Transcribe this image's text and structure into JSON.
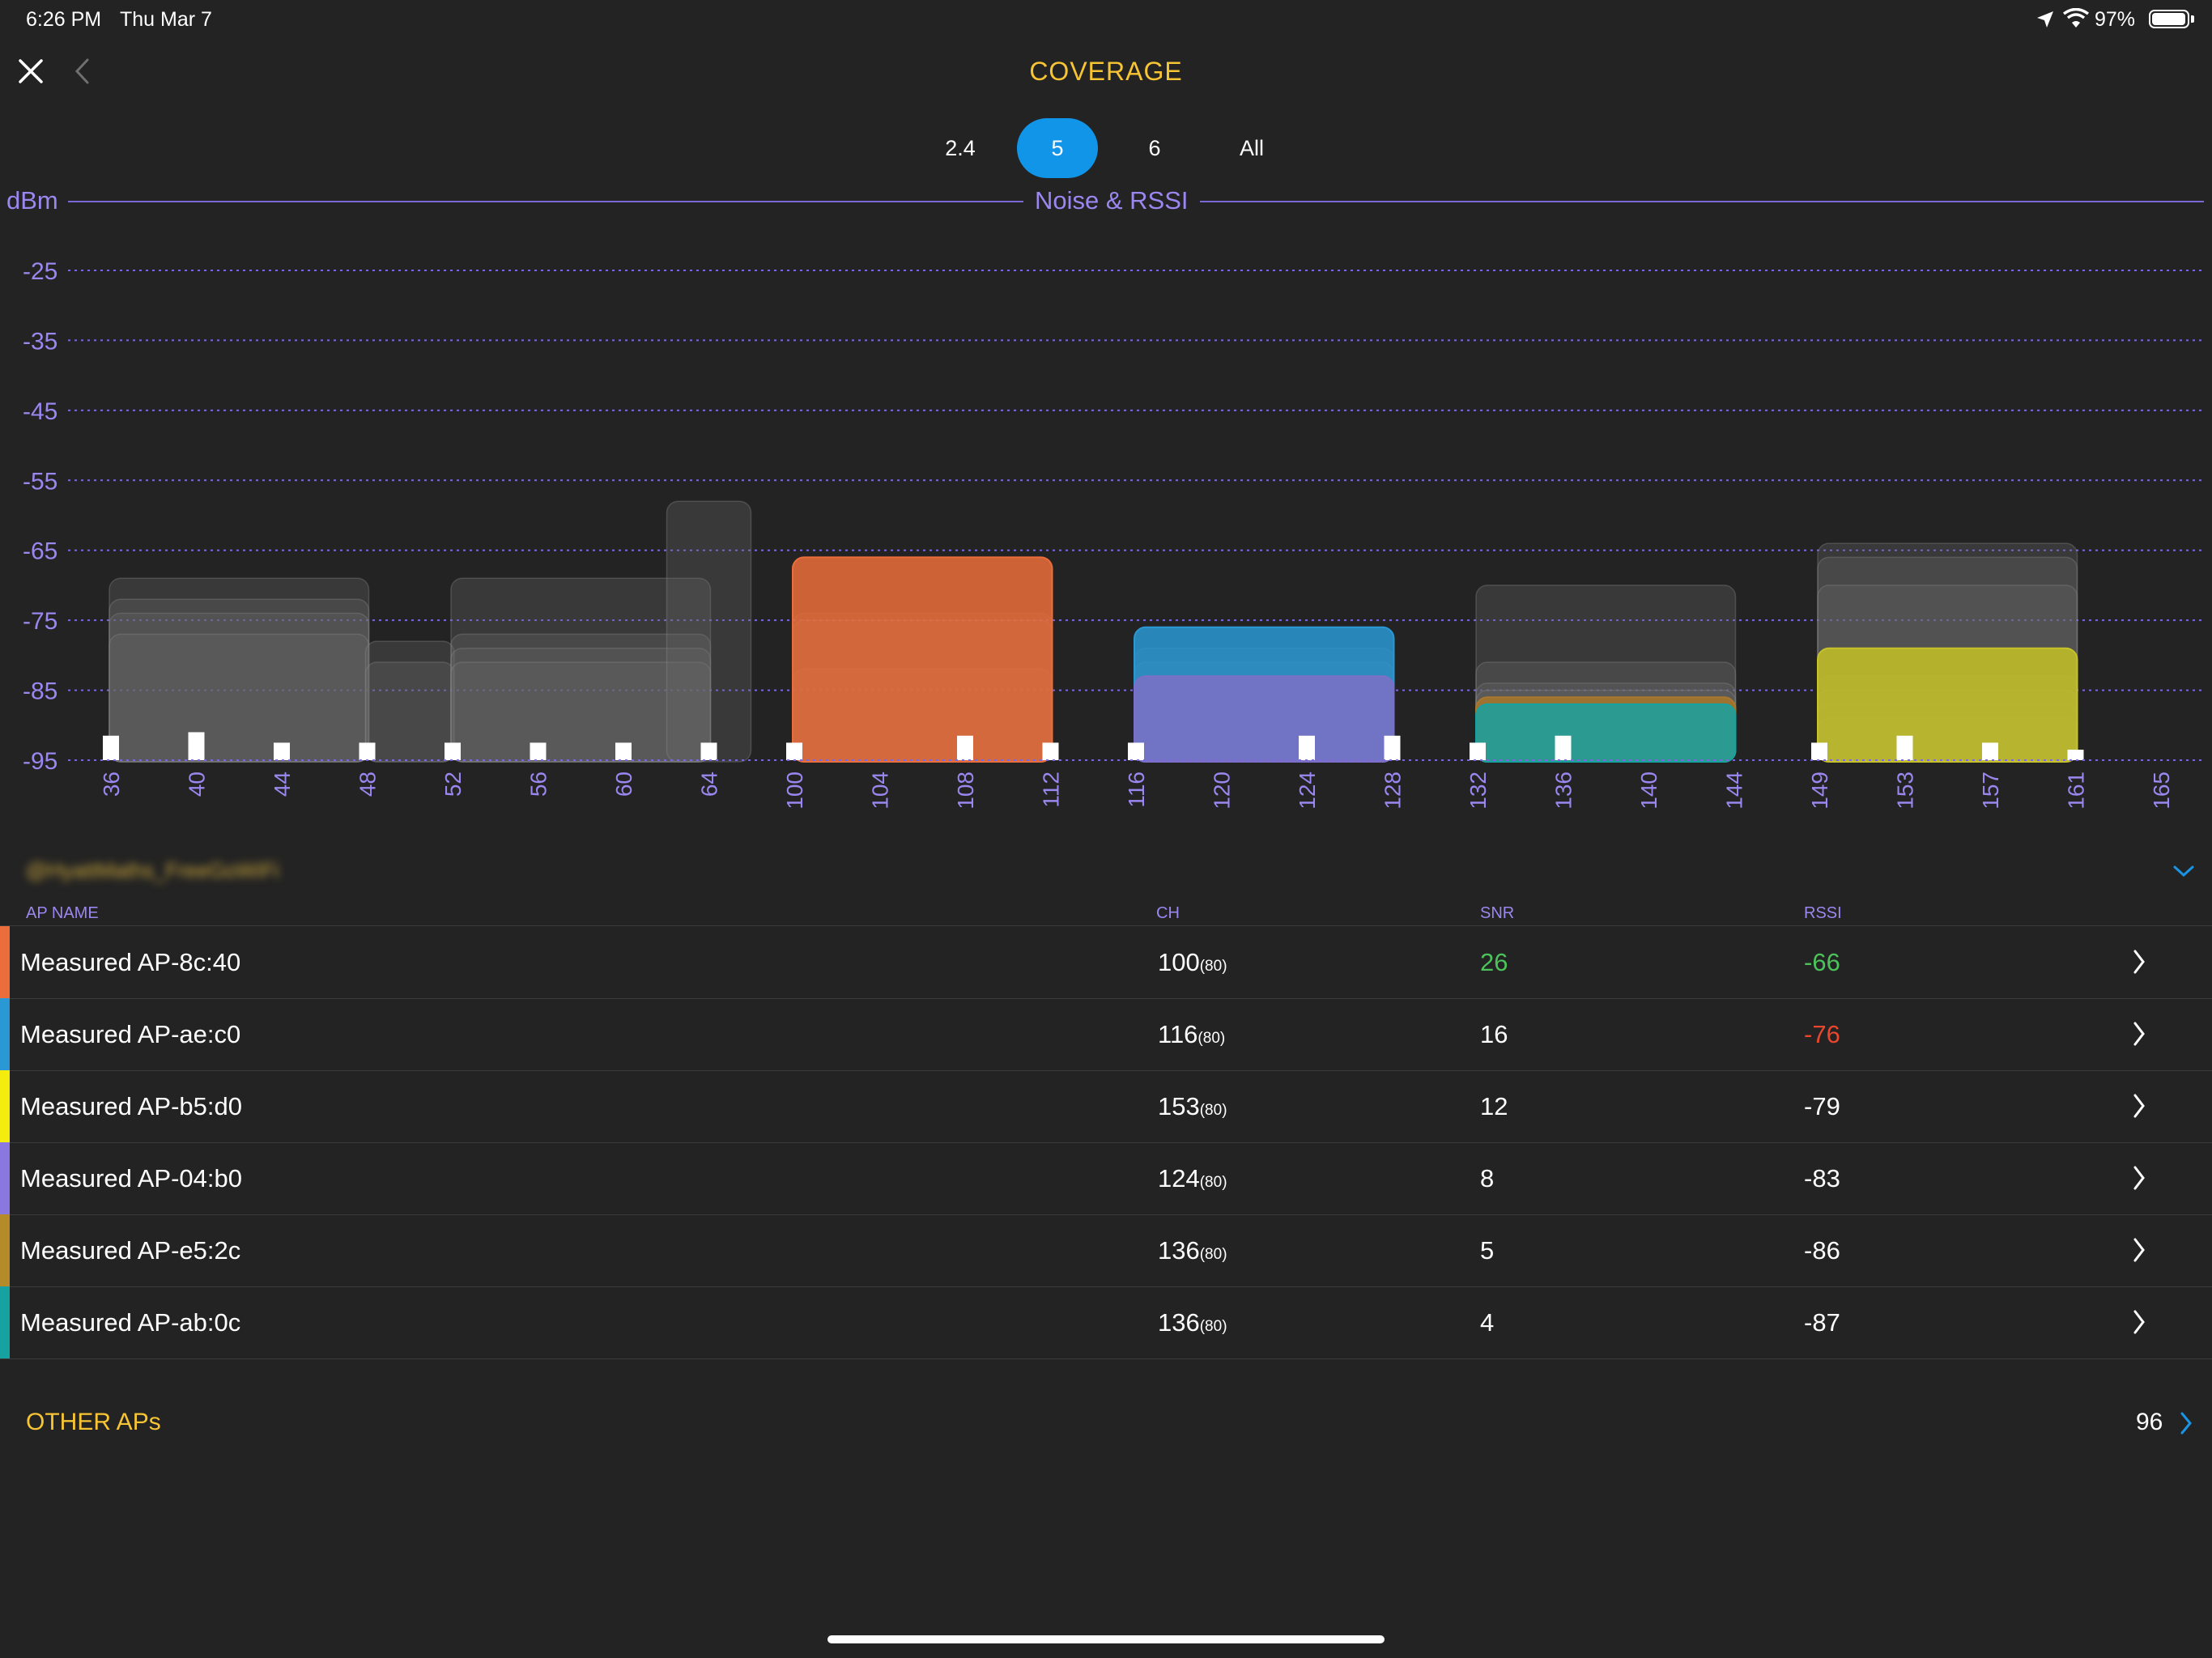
{
  "status_bar": {
    "time": "6:26 PM",
    "date": "Thu Mar 7",
    "battery": "97%",
    "battery_level": 0.97
  },
  "header": {
    "title": "COVERAGE",
    "close_icon": "close-icon",
    "back_icon": "chevron-left-icon"
  },
  "band_tabs": [
    {
      "label": "2.4",
      "active": false
    },
    {
      "label": "5",
      "active": true
    },
    {
      "label": "6",
      "active": false
    },
    {
      "label": "All",
      "active": false
    }
  ],
  "chart_data": {
    "type": "bar",
    "title": "Noise & RSSI",
    "ylabel": "dBm",
    "ylim": [
      -95,
      -25
    ],
    "yticks": [
      -25,
      -35,
      -45,
      -55,
      -65,
      -75,
      -85,
      -95
    ],
    "grid": true,
    "categories": [
      "36",
      "40",
      "44",
      "48",
      "52",
      "56",
      "60",
      "64",
      "100",
      "104",
      "108",
      "112",
      "116",
      "120",
      "124",
      "128",
      "132",
      "136",
      "140",
      "144",
      "149",
      "153",
      "157",
      "161",
      "165"
    ],
    "noise": [
      {
        "ch": "36",
        "value": -91.5
      },
      {
        "ch": "40",
        "value": -91
      },
      {
        "ch": "44",
        "value": -92.5
      },
      {
        "ch": "48",
        "value": -92.5
      },
      {
        "ch": "52",
        "value": -92.5
      },
      {
        "ch": "56",
        "value": -92.5
      },
      {
        "ch": "60",
        "value": -92.5
      },
      {
        "ch": "64",
        "value": -92.5
      },
      {
        "ch": "100",
        "value": -92.5
      },
      {
        "ch": "108",
        "value": -91.5
      },
      {
        "ch": "112",
        "value": -92.5
      },
      {
        "ch": "116",
        "value": -92.5
      },
      {
        "ch": "124",
        "value": -91.5
      },
      {
        "ch": "128",
        "value": -91.5
      },
      {
        "ch": "132",
        "value": -92.5
      },
      {
        "ch": "136",
        "value": -91.5
      },
      {
        "ch": "149",
        "value": -92.5
      },
      {
        "ch": "153",
        "value": -91.5
      },
      {
        "ch": "157",
        "value": -92.5
      },
      {
        "ch": "161",
        "value": -93.5
      }
    ],
    "background_aps": [
      {
        "from": "36",
        "to": "48",
        "rssi": -69
      },
      {
        "from": "36",
        "to": "48",
        "rssi": -72
      },
      {
        "from": "36",
        "to": "48",
        "rssi": -74
      },
      {
        "from": "36",
        "to": "48",
        "rssi": -77
      },
      {
        "from": "48",
        "to": "52",
        "rssi": -78
      },
      {
        "from": "48",
        "to": "52",
        "rssi": -81
      },
      {
        "from": "52",
        "to": "64",
        "rssi": -69
      },
      {
        "from": "52",
        "to": "64",
        "rssi": -77
      },
      {
        "from": "52",
        "to": "64",
        "rssi": -79
      },
      {
        "from": "52",
        "to": "64",
        "rssi": -81
      },
      {
        "from": "64",
        "to": "64",
        "rssi": -58
      },
      {
        "from": "100",
        "to": "112",
        "rssi": -74
      },
      {
        "from": "100",
        "to": "112",
        "rssi": -75
      },
      {
        "from": "100",
        "to": "112",
        "rssi": -82
      },
      {
        "from": "116",
        "to": "128",
        "rssi": -79
      },
      {
        "from": "116",
        "to": "128",
        "rssi": -81
      },
      {
        "from": "132",
        "to": "144",
        "rssi": -70
      },
      {
        "from": "132",
        "to": "144",
        "rssi": -81
      },
      {
        "from": "132",
        "to": "144",
        "rssi": -84
      },
      {
        "from": "132",
        "to": "144",
        "rssi": -85
      },
      {
        "from": "149",
        "to": "161",
        "rssi": -64
      },
      {
        "from": "149",
        "to": "161",
        "rssi": -66
      },
      {
        "from": "149",
        "to": "161",
        "rssi": -70
      },
      {
        "from": "149",
        "to": "161",
        "rssi": -83
      },
      {
        "from": "149",
        "to": "161",
        "rssi": -85
      },
      {
        "from": "149",
        "to": "161",
        "rssi": -87
      },
      {
        "from": "149",
        "to": "161",
        "rssi": -89
      }
    ],
    "series": [
      {
        "name": "Measured AP-8c:40",
        "color": "#eb6d3b",
        "from": "100",
        "to": "112",
        "rssi": -66
      },
      {
        "name": "Measured AP-ae:c0",
        "color": "#2a98d4",
        "from": "116",
        "to": "128",
        "rssi": -76
      },
      {
        "name": "Measured AP-b5:d0",
        "color": "#c6c227",
        "from": "149",
        "to": "161",
        "rssi": -79
      },
      {
        "name": "Measured AP-04:b0",
        "color": "#7d6fc7",
        "from": "116",
        "to": "128",
        "rssi": -83
      },
      {
        "name": "Measured AP-e5:2c",
        "color": "#a9782c",
        "from": "132",
        "to": "144",
        "rssi": -86
      },
      {
        "name": "Measured AP-ab:0c",
        "color": "#17a2a2",
        "from": "132",
        "to": "144",
        "rssi": -87
      }
    ]
  },
  "network": {
    "name": "@HyattMaths_FreeGoWiFi",
    "expand_icon": "chevron-down-icon"
  },
  "table": {
    "headers": {
      "ap_name": "AP NAME",
      "ch": "CH",
      "snr": "SNR",
      "rssi": "RSSI"
    },
    "rows": [
      {
        "name": "Measured AP-8c:40",
        "ch": "100",
        "width": "(80)",
        "snr": "26",
        "rssi": "-66",
        "color": "#eb6d3b",
        "snr_color": "#4cc25a",
        "rssi_color": "#4cc25a"
      },
      {
        "name": "Measured AP-ae:c0",
        "ch": "116",
        "width": "(80)",
        "snr": "16",
        "rssi": "-76",
        "color": "#2a98d4",
        "snr_color": "#ffffff",
        "rssi_color": "#e8472e"
      },
      {
        "name": "Measured AP-b5:d0",
        "ch": "153",
        "width": "(80)",
        "snr": "12",
        "rssi": "-79",
        "color": "#f4ec0f",
        "snr_color": "#ffffff",
        "rssi_color": "#ffffff"
      },
      {
        "name": "Measured AP-04:b0",
        "ch": "124",
        "width": "(80)",
        "snr": "8",
        "rssi": "-83",
        "color": "#8a78e0",
        "snr_color": "#ffffff",
        "rssi_color": "#ffffff"
      },
      {
        "name": "Measured AP-e5:2c",
        "ch": "136",
        "width": "(80)",
        "snr": "5",
        "rssi": "-86",
        "color": "#b58a28",
        "snr_color": "#ffffff",
        "rssi_color": "#ffffff"
      },
      {
        "name": "Measured AP-ab:0c",
        "ch": "136",
        "width": "(80)",
        "snr": "4",
        "rssi": "-87",
        "color": "#17a2a2",
        "snr_color": "#ffffff",
        "rssi_color": "#ffffff"
      }
    ]
  },
  "other_aps": {
    "label": "OTHER APs",
    "count": "96"
  }
}
